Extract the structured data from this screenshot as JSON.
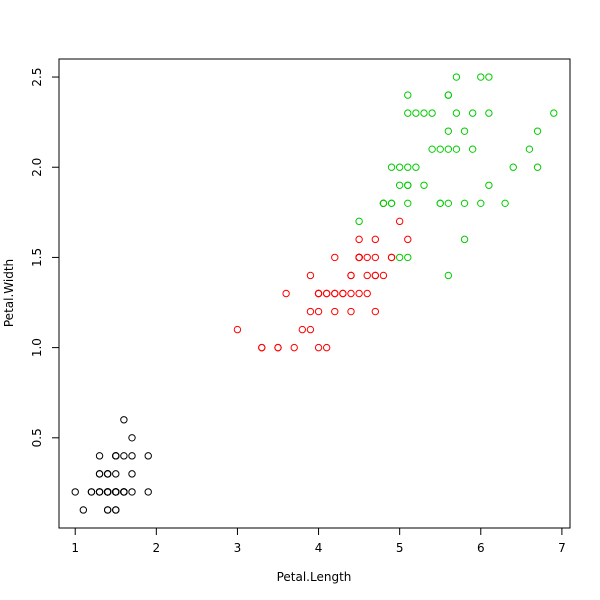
{
  "chart_data": {
    "type": "scatter",
    "title": "",
    "xlabel": "Petal.Length",
    "ylabel": "Petal.Width",
    "xlim": [
      0.8,
      7.1
    ],
    "ylim": [
      0.0,
      2.6
    ],
    "xticks": [
      1,
      2,
      3,
      4,
      5,
      6,
      7
    ],
    "yticks": [
      0.5,
      1.0,
      1.5,
      2.0,
      2.5
    ],
    "xtick_labels": [
      "1",
      "2",
      "3",
      "4",
      "5",
      "6",
      "7"
    ],
    "ytick_labels": [
      "0.5",
      "1.0",
      "1.5",
      "2.0",
      "2.5"
    ],
    "grid": false,
    "legend": "none",
    "marker": "open-circle",
    "series": [
      {
        "color": "#000000",
        "points": [
          [
            1.4,
            0.2
          ],
          [
            1.4,
            0.2
          ],
          [
            1.3,
            0.2
          ],
          [
            1.5,
            0.2
          ],
          [
            1.4,
            0.2
          ],
          [
            1.7,
            0.4
          ],
          [
            1.4,
            0.3
          ],
          [
            1.5,
            0.2
          ],
          [
            1.4,
            0.2
          ],
          [
            1.5,
            0.1
          ],
          [
            1.5,
            0.2
          ],
          [
            1.6,
            0.2
          ],
          [
            1.4,
            0.1
          ],
          [
            1.1,
            0.1
          ],
          [
            1.2,
            0.2
          ],
          [
            1.5,
            0.4
          ],
          [
            1.3,
            0.4
          ],
          [
            1.4,
            0.3
          ],
          [
            1.7,
            0.3
          ],
          [
            1.5,
            0.3
          ],
          [
            1.7,
            0.2
          ],
          [
            1.5,
            0.4
          ],
          [
            1.0,
            0.2
          ],
          [
            1.7,
            0.5
          ],
          [
            1.9,
            0.2
          ],
          [
            1.6,
            0.2
          ],
          [
            1.6,
            0.4
          ],
          [
            1.5,
            0.2
          ],
          [
            1.4,
            0.2
          ],
          [
            1.6,
            0.2
          ],
          [
            1.6,
            0.2
          ],
          [
            1.5,
            0.4
          ],
          [
            1.5,
            0.1
          ],
          [
            1.4,
            0.2
          ],
          [
            1.5,
            0.2
          ],
          [
            1.2,
            0.2
          ],
          [
            1.3,
            0.2
          ],
          [
            1.4,
            0.1
          ],
          [
            1.3,
            0.2
          ],
          [
            1.5,
            0.2
          ],
          [
            1.3,
            0.3
          ],
          [
            1.3,
            0.3
          ],
          [
            1.3,
            0.2
          ],
          [
            1.6,
            0.6
          ],
          [
            1.9,
            0.4
          ],
          [
            1.4,
            0.3
          ],
          [
            1.6,
            0.2
          ],
          [
            1.4,
            0.2
          ],
          [
            1.5,
            0.2
          ],
          [
            1.4,
            0.2
          ]
        ]
      },
      {
        "color": "#ff0000",
        "points": [
          [
            4.7,
            1.4
          ],
          [
            4.5,
            1.5
          ],
          [
            4.9,
            1.5
          ],
          [
            4.0,
            1.3
          ],
          [
            4.6,
            1.5
          ],
          [
            4.5,
            1.3
          ],
          [
            4.7,
            1.6
          ],
          [
            3.3,
            1.0
          ],
          [
            4.6,
            1.3
          ],
          [
            3.9,
            1.4
          ],
          [
            3.5,
            1.0
          ],
          [
            4.2,
            1.5
          ],
          [
            4.0,
            1.0
          ],
          [
            4.7,
            1.4
          ],
          [
            3.6,
            1.3
          ],
          [
            4.4,
            1.4
          ],
          [
            4.5,
            1.5
          ],
          [
            4.1,
            1.0
          ],
          [
            4.5,
            1.5
          ],
          [
            3.9,
            1.1
          ],
          [
            4.8,
            1.8
          ],
          [
            4.0,
            1.3
          ],
          [
            4.9,
            1.5
          ],
          [
            4.7,
            1.2
          ],
          [
            4.3,
            1.3
          ],
          [
            4.4,
            1.4
          ],
          [
            4.8,
            1.4
          ],
          [
            5.0,
            1.7
          ],
          [
            4.5,
            1.5
          ],
          [
            3.5,
            1.0
          ],
          [
            3.8,
            1.1
          ],
          [
            3.7,
            1.0
          ],
          [
            3.9,
            1.2
          ],
          [
            5.1,
            1.6
          ],
          [
            4.5,
            1.5
          ],
          [
            4.5,
            1.6
          ],
          [
            4.7,
            1.5
          ],
          [
            4.4,
            1.3
          ],
          [
            4.1,
            1.3
          ],
          [
            4.0,
            1.3
          ],
          [
            4.4,
            1.2
          ],
          [
            4.6,
            1.4
          ],
          [
            4.0,
            1.2
          ],
          [
            3.3,
            1.0
          ],
          [
            4.2,
            1.3
          ],
          [
            4.2,
            1.2
          ],
          [
            4.2,
            1.3
          ],
          [
            4.3,
            1.3
          ],
          [
            3.0,
            1.1
          ],
          [
            4.1,
            1.3
          ]
        ]
      },
      {
        "color": "#00cd00",
        "points": [
          [
            6.0,
            2.5
          ],
          [
            5.1,
            1.9
          ],
          [
            5.9,
            2.1
          ],
          [
            5.6,
            1.8
          ],
          [
            5.8,
            2.2
          ],
          [
            6.6,
            2.1
          ],
          [
            4.5,
            1.7
          ],
          [
            6.3,
            1.8
          ],
          [
            5.8,
            1.8
          ],
          [
            6.1,
            2.5
          ],
          [
            5.1,
            2.0
          ],
          [
            5.3,
            1.9
          ],
          [
            5.5,
            2.1
          ],
          [
            5.0,
            2.0
          ],
          [
            5.1,
            2.4
          ],
          [
            5.3,
            2.3
          ],
          [
            5.5,
            1.8
          ],
          [
            6.7,
            2.2
          ],
          [
            6.9,
            2.3
          ],
          [
            5.0,
            1.5
          ],
          [
            5.7,
            2.3
          ],
          [
            4.9,
            2.0
          ],
          [
            6.7,
            2.0
          ],
          [
            4.9,
            1.8
          ],
          [
            5.7,
            2.1
          ],
          [
            6.0,
            1.8
          ],
          [
            4.8,
            1.8
          ],
          [
            4.9,
            1.8
          ],
          [
            5.6,
            2.1
          ],
          [
            5.8,
            1.6
          ],
          [
            6.1,
            1.9
          ],
          [
            6.4,
            2.0
          ],
          [
            5.6,
            2.2
          ],
          [
            5.1,
            1.5
          ],
          [
            5.6,
            1.4
          ],
          [
            6.1,
            2.3
          ],
          [
            5.6,
            2.4
          ],
          [
            5.5,
            1.8
          ],
          [
            4.8,
            1.8
          ],
          [
            5.4,
            2.1
          ],
          [
            5.6,
            2.4
          ],
          [
            5.1,
            2.3
          ],
          [
            5.1,
            1.9
          ],
          [
            5.9,
            2.3
          ],
          [
            5.7,
            2.5
          ],
          [
            5.2,
            2.3
          ],
          [
            5.0,
            1.9
          ],
          [
            5.2,
            2.0
          ],
          [
            5.4,
            2.3
          ],
          [
            5.1,
            1.8
          ]
        ]
      }
    ]
  }
}
